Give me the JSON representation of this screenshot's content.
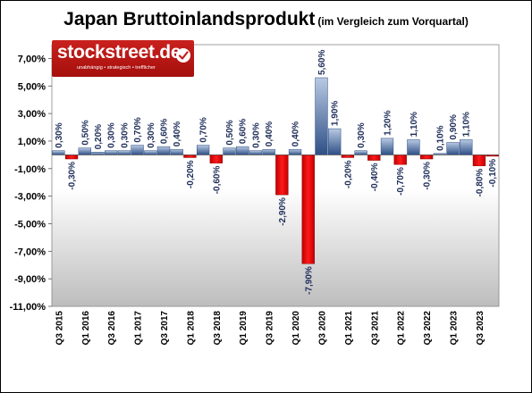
{
  "header": {
    "title": "Japan Bruttoinlandsprodukt",
    "subtitle": "(im Vergleich zum Vorquartal)"
  },
  "logo": {
    "name": "stockstreet.de",
    "tagline": "unabhängig • strategisch • trefflicher",
    "icon": "checkmark-icon",
    "color": "#c0201d"
  },
  "colors": {
    "positive": "#4a6fa5",
    "negative": "#e00000",
    "label": "#1f2f5a"
  },
  "chart_data": {
    "type": "bar",
    "title": "Japan Bruttoinlandsprodukt",
    "subtitle": "(im Vergleich zum Vorquartal)",
    "xlabel": "",
    "ylabel": "",
    "ylim": [
      -11,
      8
    ],
    "yticks": [
      7,
      5,
      3,
      1,
      -1,
      -3,
      -5,
      -7,
      -9,
      -11
    ],
    "ytick_labels": [
      "7,00%",
      "5,00%",
      "3,00%",
      "1,00%",
      "-1,00%",
      "-3,00%",
      "-5,00%",
      "-7,00%",
      "-9,00%",
      "-11,00%"
    ],
    "grid": false,
    "legend": "none",
    "categories": [
      "Q3 2015",
      "Q4 2015",
      "Q1 2016",
      "Q2 2016",
      "Q3 2016",
      "Q4 2016",
      "Q1 2017",
      "Q2 2017",
      "Q3 2017",
      "Q4 2017",
      "Q1 2018",
      "Q2 2018",
      "Q3 2018",
      "Q4 2018",
      "Q1 2019",
      "Q2 2019",
      "Q3 2019",
      "Q4 2019",
      "Q1 2020",
      "Q2 2020",
      "Q3 2020",
      "Q4 2020",
      "Q1 2021",
      "Q2 2021",
      "Q3 2021",
      "Q4 2021",
      "Q1 2022",
      "Q2 2022",
      "Q3 2022",
      "Q4 2022",
      "Q1 2023",
      "Q2 2023",
      "Q3 2023",
      "Q4 2023"
    ],
    "visible_xtick_labels": [
      "Q3 2015",
      "Q1 2016",
      "Q3 2016",
      "Q1 2017",
      "Q3 2017",
      "Q1 2018",
      "Q3 2018",
      "Q1 2019",
      "Q3 2019",
      "Q1 2020",
      "Q3 2020",
      "Q1 2021",
      "Q3 2021",
      "Q1 2022",
      "Q3 2022",
      "Q1 2023",
      "Q3 2023"
    ],
    "values": [
      0.3,
      -0.3,
      0.5,
      0.2,
      0.3,
      0.3,
      0.7,
      0.3,
      0.6,
      0.4,
      -0.2,
      0.7,
      -0.6,
      0.5,
      0.6,
      0.3,
      0.4,
      -2.9,
      0.4,
      -7.9,
      5.6,
      1.9,
      -0.2,
      0.3,
      -0.4,
      1.2,
      -0.7,
      1.1,
      -0.3,
      0.1,
      0.9,
      1.1,
      -0.8,
      -0.1
    ],
    "value_labels": [
      "0,30%",
      "-0,30%",
      "0,50%",
      "0,20%",
      "0,30%",
      "0,30%",
      "0,70%",
      "0,30%",
      "0,60%",
      "0,40%",
      "-0,20%",
      "0,70%",
      "-0,60%",
      "0,50%",
      "0,60%",
      "0,30%",
      "0,40%",
      "-2,90%",
      "0,40%",
      "-7,90%",
      "5,60%",
      "1,90%",
      "-0,20%",
      "0,30%",
      "-0,40%",
      "1,20%",
      "-0,70%",
      "1,10%",
      "-0,30%",
      "0,10%",
      "0,90%",
      "1,10%",
      "-0,80%",
      "-0,10%"
    ]
  }
}
